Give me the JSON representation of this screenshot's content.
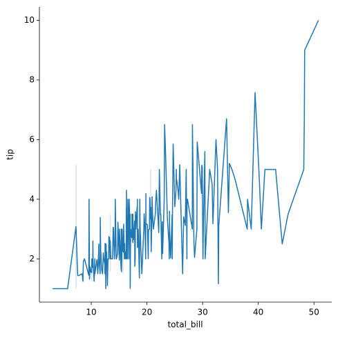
{
  "chart_data": {
    "type": "line",
    "x_label": "total_bill",
    "y_label": "tip",
    "color": "#1f77b4",
    "x": [
      3.07,
      5.75,
      7.25,
      7.56,
      7.74,
      8.35,
      8.51,
      8.52,
      8.58,
      8.77,
      9.55,
      9.6,
      9.68,
      9.78,
      9.94,
      10.07,
      10.09,
      10.27,
      10.29,
      10.33,
      10.34,
      10.51,
      10.59,
      10.63,
      10.65,
      11.02,
      11.17,
      11.24,
      11.35,
      11.38,
      11.59,
      11.61,
      11.69,
      11.87,
      12.03,
      12.16,
      12.26,
      12.43,
      12.46,
      12.48,
      12.54,
      12.6,
      12.66,
      12.69,
      12.74,
      12.76,
      12.9,
      13.0,
      13.03,
      13.13,
      13.16,
      13.27,
      13.28,
      13.37,
      13.39,
      13.42,
      13.51,
      13.81,
      13.94,
      14.0,
      14.07,
      14.15,
      14.26,
      14.31,
      14.48,
      14.52,
      14.73,
      14.78,
      14.83,
      15.01,
      15.04,
      15.06,
      15.36,
      15.38,
      15.42,
      15.48,
      15.53,
      15.69,
      15.77,
      15.81,
      15.95,
      15.98,
      16.0,
      16.04,
      16.21,
      16.27,
      16.29,
      16.31,
      16.32,
      16.4,
      16.45,
      16.47,
      16.49,
      16.58,
      16.66,
      16.76,
      16.82,
      16.93,
      16.97,
      16.99,
      17.07,
      17.26,
      17.29,
      17.31,
      17.46,
      17.47,
      17.51,
      17.59,
      17.78,
      17.81,
      17.82,
      17.89,
      17.92,
      18.04,
      18.15,
      18.24,
      18.26,
      18.28,
      18.29,
      18.35,
      18.43,
      18.64,
      18.69,
      18.71,
      18.78,
      19.08,
      19.44,
      19.49,
      19.65,
      19.77,
      19.81,
      19.82,
      20.08,
      20.23,
      20.27,
      20.29,
      20.45,
      20.49,
      20.53,
      20.65,
      20.69,
      20.76,
      20.9,
      20.92,
      21.01,
      21.16,
      21.5,
      21.58,
      21.7,
      22.12,
      22.23,
      22.42,
      22.49,
      22.67,
      22.75,
      22.76,
      22.82,
      23.1,
      23.17,
      23.33,
      23.68,
      23.95,
      24.01,
      24.06,
      24.08,
      24.27,
      24.52,
      24.55,
      24.59,
      24.71,
      25.0,
      25.21,
      25.28,
      25.29,
      25.56,
      25.71,
      25.89,
      26.41,
      26.59,
      26.86,
      26.88,
      27.05,
      27.18,
      27.2,
      27.28,
      28.15,
      28.17,
      28.44,
      28.55,
      28.97,
      29.03,
      29.8,
      29.85,
      29.93,
      30.06,
      30.14,
      30.4,
      30.46,
      31.27,
      31.71,
      31.85,
      32.4,
      32.68,
      32.83,
      32.9,
      34.3,
      34.63,
      34.65,
      34.81,
      35.26,
      35.83,
      38.01,
      38.07,
      38.73,
      39.42,
      40.17,
      40.55,
      41.19,
      43.11,
      44.3,
      45.35,
      48.17,
      48.27,
      48.33,
      50.81
    ],
    "values": [
      1.0,
      1.0,
      3.08,
      1.44,
      1.44,
      1.5,
      1.25,
      1.48,
      1.92,
      2.0,
      1.45,
      4.0,
      1.32,
      1.73,
      1.56,
      1.54,
      2.0,
      1.71,
      2.6,
      1.84,
      1.83,
      1.25,
      1.61,
      2.0,
      1.5,
      1.98,
      1.5,
      1.76,
      2.5,
      2.0,
      1.5,
      3.39,
      2.31,
      1.63,
      1.5,
      2.2,
      2.0,
      1.8,
      1.5,
      2.52,
      2.5,
      1.0,
      2.5,
      2.0,
      2.01,
      2.23,
      1.1,
      2.0,
      2.0,
      2.0,
      2.75,
      2.5,
      2.72,
      2.0,
      2.61,
      2.53,
      2.0,
      2.0,
      3.06,
      3.0,
      2.5,
      2.0,
      2.5,
      4.0,
      2.0,
      2.0,
      2.2,
      3.23,
      3.02,
      2.09,
      1.96,
      3.0,
      1.64,
      3.0,
      1.57,
      2.02,
      3.0,
      2.25,
      2.23,
      3.16,
      2.0,
      2.52,
      2.0,
      2.24,
      2.0,
      2.5,
      3.71,
      2.0,
      4.3,
      2.5,
      2.47,
      3.23,
      2.0,
      4.0,
      3.4,
      2.0,
      4.0,
      3.07,
      3.5,
      1.01,
      3.0,
      2.74,
      2.71,
      3.5,
      2.54,
      3.5,
      3.0,
      2.64,
      3.27,
      2.34,
      1.75,
      2.0,
      3.58,
      3.0,
      3.5,
      3.76,
      3.25,
      4.0,
      2.38,
      2.5,
      3.0,
      1.36,
      2.31,
      4.0,
      3.0,
      1.5,
      3.0,
      3.51,
      3.0,
      2.0,
      4.19,
      3.18,
      3.15,
      2.01,
      2.83,
      2.98,
      3.0,
      4.06,
      4.0,
      3.35,
      3.73,
      2.24,
      3.5,
      4.08,
      3.5,
      3.0,
      3.5,
      3.92,
      4.3,
      2.88,
      5.0,
      3.48,
      3.5,
      2.0,
      3.25,
      3.0,
      2.18,
      4.0,
      6.5,
      5.65,
      3.31,
      2.55,
      2.0,
      3.6,
      2.92,
      2.03,
      3.48,
      2.0,
      3.61,
      5.85,
      3.75,
      4.29,
      5.0,
      4.71,
      4.34,
      4.0,
      5.16,
      1.5,
      3.41,
      3.14,
      3.12,
      5.0,
      2.0,
      4.0,
      4.0,
      3.0,
      6.5,
      2.56,
      2.05,
      3.0,
      5.92,
      4.2,
      5.14,
      5.07,
      2.0,
      3.09,
      5.6,
      2.0,
      5.0,
      4.5,
      3.18,
      6.0,
      5.0,
      1.17,
      3.11,
      6.7,
      3.55,
      3.68,
      5.2,
      5.0,
      4.67,
      3.0,
      4.0,
      3.0,
      7.58,
      4.73,
      3.0,
      5.0,
      5.0,
      2.5,
      3.5,
      5.0,
      6.73,
      9.0,
      10.0
    ],
    "ci_x": [
      7.25,
      10.07,
      13.42,
      15.69,
      20.69
    ],
    "ci_low": [
      1.0,
      1.25,
      1.58,
      1.5,
      2.45
    ],
    "ci_high": [
      5.15,
      1.83,
      3.48,
      3.0,
      5.0
    ],
    "xlim": [
      0.68,
      53.2
    ],
    "ylim": [
      0.55,
      10.45
    ],
    "xticks": [
      10,
      20,
      30,
      40,
      50
    ],
    "yticks": [
      2,
      4,
      6,
      8,
      10
    ]
  }
}
